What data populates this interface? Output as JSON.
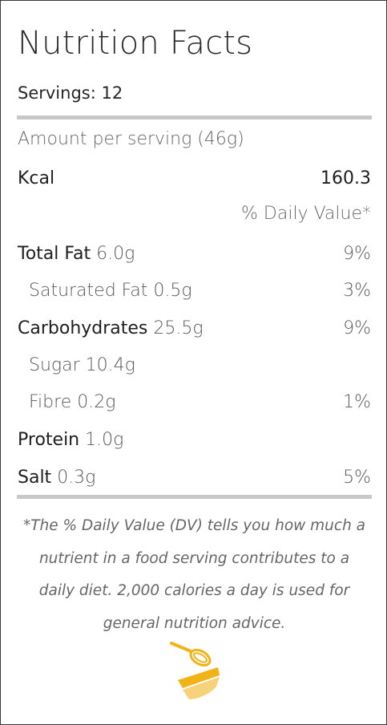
{
  "label": {
    "title": "Nutrition Facts",
    "servings": "Servings: 12",
    "amount_per_serving": "Amount per serving (46g)",
    "kcal_label": "Kcal",
    "kcal_value": "160.3",
    "daily_value_header": "% Daily Value*",
    "nutrients": [
      {
        "name": "Total Fat",
        "amount": "6.0g",
        "dv": "9%"
      },
      {
        "name": "Saturated Fat",
        "amount": "0.5g",
        "dv": "3%"
      },
      {
        "name": "Carbohydrates",
        "amount": "25.5g",
        "dv": "9%"
      },
      {
        "name": "Sugar",
        "amount": "10.4g",
        "dv": ""
      },
      {
        "name": "Fibre",
        "amount": "0.2g",
        "dv": "1%"
      },
      {
        "name": "Protein",
        "amount": "1.0g",
        "dv": ""
      },
      {
        "name": "Salt",
        "amount": "0.3g",
        "dv": "5%"
      }
    ],
    "footnote": "*The % Daily Value (DV) tells you how much a nutrient in a food serving contributes to a daily diet. 2,000 calories a day is used for general nutrition advice."
  },
  "colors": {
    "rule": "#c8c8c8",
    "logo_yellow": "#f2b316",
    "logo_light": "#f6d27a"
  },
  "icons": {
    "logo": "whisk-bowl-icon"
  }
}
